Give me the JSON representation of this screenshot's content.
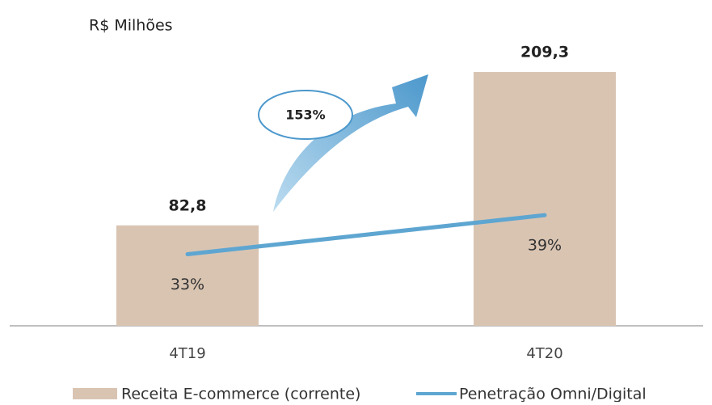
{
  "chart_data": {
    "type": "bar-line",
    "subtitle": "R$ Milhões",
    "categories": [
      "4T19",
      "4T20"
    ],
    "series": [
      {
        "name": "Receita E-commerce (corrente)",
        "type": "bar",
        "color": "#d9c4b2",
        "values": [
          82.8,
          209.3
        ],
        "value_labels": [
          "82,8",
          "209,3"
        ]
      },
      {
        "name": "Penetração Omni/Digital",
        "type": "line",
        "axis": "y2",
        "color": "#5ea6d1",
        "values": [
          33,
          39
        ],
        "value_labels": [
          "33%",
          "39%"
        ]
      }
    ],
    "ylim": [
      0,
      220
    ],
    "y2lim": [
      22,
      63
    ],
    "annotation": "153%",
    "legend": "bottom"
  }
}
